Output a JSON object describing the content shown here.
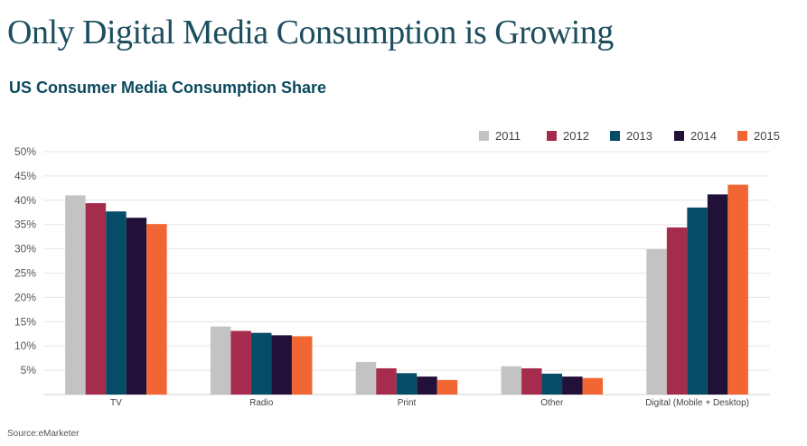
{
  "headline": "Only Digital Media Consumption is Growing",
  "source": "Source:eMarketer",
  "chart_data": {
    "type": "bar",
    "title": "US Consumer Media Consumption Share",
    "xlabel": "",
    "ylabel": "",
    "categories": [
      "TV",
      "Radio",
      "Print",
      "Other",
      "Digital (Mobile + Desktop)"
    ],
    "series": [
      {
        "name": "2011",
        "color": "#c3c3c3",
        "values": [
          41.0,
          14.0,
          6.7,
          5.8,
          29.9
        ]
      },
      {
        "name": "2012",
        "color": "#a62c4e",
        "values": [
          39.4,
          13.1,
          5.4,
          5.4,
          34.4
        ]
      },
      {
        "name": "2013",
        "color": "#064c66",
        "values": [
          37.7,
          12.7,
          4.4,
          4.3,
          38.5
        ]
      },
      {
        "name": "2014",
        "color": "#211139",
        "values": [
          36.4,
          12.2,
          3.7,
          3.7,
          41.2
        ]
      },
      {
        "name": "2015",
        "color": "#f26633",
        "values": [
          35.1,
          12.0,
          3.0,
          3.4,
          43.2
        ]
      }
    ],
    "ylim": [
      0,
      50
    ],
    "yticks": [
      5,
      10,
      15,
      20,
      25,
      30,
      35,
      40,
      45,
      50
    ],
    "ytick_labels": [
      "5%",
      "10%",
      "15%",
      "20%",
      "25%",
      "30%",
      "35%",
      "40%",
      "45%",
      "50%"
    ],
    "grid": true,
    "legend_position": "top-right"
  }
}
